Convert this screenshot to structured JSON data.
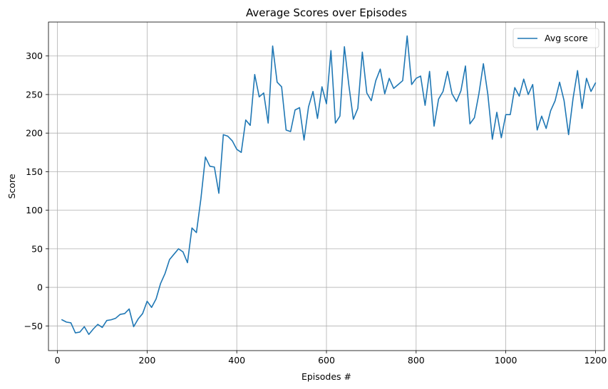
{
  "chart_data": {
    "type": "line",
    "title": "Average Scores over Episodes",
    "xlabel": "Episodes #",
    "ylabel": "Score",
    "xlim": [
      -20,
      1220
    ],
    "ylim": [
      -82,
      344
    ],
    "xticks": [
      0,
      200,
      400,
      600,
      800,
      1000,
      1200
    ],
    "yticks": [
      -50,
      0,
      50,
      100,
      150,
      200,
      250,
      300
    ],
    "grid": true,
    "legend_position": "top-right",
    "series": [
      {
        "name": "Avg score",
        "color": "#1f77b4",
        "x": [
          10,
          20,
          30,
          40,
          50,
          60,
          70,
          80,
          90,
          100,
          110,
          120,
          130,
          140,
          150,
          160,
          170,
          180,
          190,
          200,
          210,
          220,
          230,
          240,
          250,
          260,
          270,
          280,
          290,
          300,
          310,
          320,
          330,
          340,
          350,
          360,
          370,
          380,
          390,
          400,
          410,
          420,
          430,
          440,
          450,
          460,
          470,
          480,
          490,
          500,
          510,
          520,
          530,
          540,
          550,
          560,
          570,
          580,
          590,
          600,
          610,
          620,
          630,
          640,
          650,
          660,
          670,
          680,
          690,
          700,
          710,
          720,
          730,
          740,
          750,
          760,
          770,
          780,
          790,
          800,
          810,
          820,
          830,
          840,
          850,
          860,
          870,
          880,
          890,
          900,
          910,
          920,
          930,
          940,
          950,
          960,
          970,
          980,
          990,
          1000,
          1010,
          1020,
          1030,
          1040,
          1050,
          1060,
          1070,
          1080,
          1090,
          1100,
          1110,
          1120,
          1130,
          1140,
          1150,
          1160,
          1170,
          1180,
          1190,
          1200
        ],
        "y": [
          -42,
          -45,
          -46,
          -59,
          -58,
          -51,
          -61,
          -54,
          -48,
          -52,
          -43,
          -42,
          -40,
          -35,
          -34,
          -28,
          -51,
          -41,
          -34,
          -18,
          -26,
          -15,
          5,
          18,
          36,
          43,
          50,
          46,
          32,
          77,
          71,
          115,
          169,
          157,
          156,
          122,
          198,
          196,
          190,
          179,
          175,
          217,
          210,
          276,
          247,
          252,
          213,
          313,
          266,
          260,
          204,
          202,
          230,
          233,
          191,
          234,
          254,
          219,
          260,
          238,
          307,
          213,
          222,
          312,
          262,
          218,
          232,
          305,
          252,
          242,
          268,
          283,
          251,
          271,
          258,
          263,
          268,
          326,
          263,
          271,
          274,
          236,
          280,
          209,
          244,
          254,
          280,
          251,
          241,
          255,
          287,
          212,
          220,
          251,
          290,
          250,
          192,
          227,
          194,
          224,
          224,
          259,
          248,
          270,
          250,
          263,
          204,
          222,
          206,
          229,
          242,
          266,
          242,
          198,
          245,
          281,
          232,
          271,
          254,
          265
        ]
      }
    ]
  }
}
